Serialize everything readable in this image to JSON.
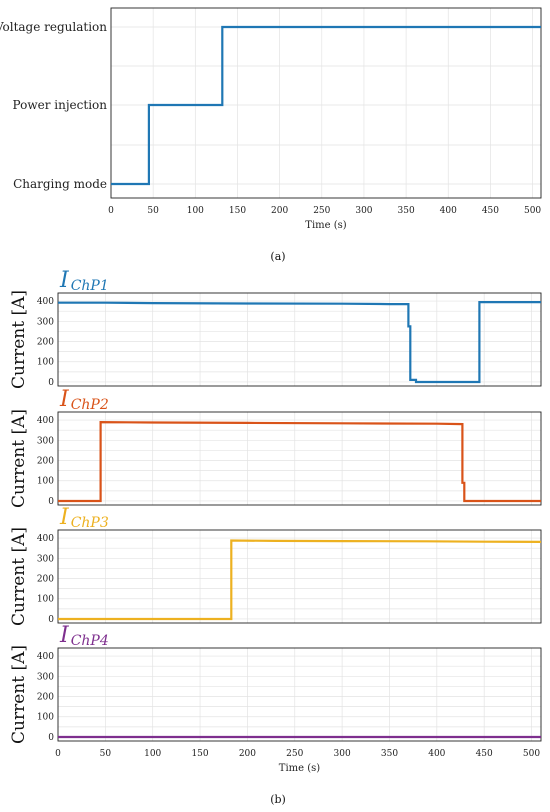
{
  "chart_data": [
    {
      "id": "a",
      "type": "line",
      "step": true,
      "caption": "(a)",
      "xlabel": "Time (s)",
      "xlim": [
        0,
        510
      ],
      "xticks": [
        0,
        50,
        100,
        150,
        200,
        250,
        300,
        350,
        400,
        450,
        500
      ],
      "ycategories": [
        "Charging mode",
        "Power injection",
        "Voltage regulation"
      ],
      "grid": true,
      "series": [
        {
          "color": "#1f77b4",
          "x": [
            0,
            45,
            45,
            132,
            132,
            510
          ],
          "y": [
            0,
            0,
            1,
            1,
            2,
            2
          ]
        }
      ]
    },
    {
      "id": "b",
      "type": "line",
      "caption": "(b)",
      "xlabel": "Time (s)",
      "xlim": [
        0,
        510
      ],
      "xticks": [
        0,
        50,
        100,
        150,
        200,
        250,
        300,
        350,
        400,
        450,
        500
      ],
      "grid": true,
      "panels": [
        {
          "title_main": "I",
          "title_sub": "ChP1",
          "ylabel": "Current [A]",
          "ylim": [
            -20,
            440
          ],
          "yticks": [
            0,
            100,
            200,
            300,
            400
          ],
          "color": "#1f77b4",
          "x": [
            0,
            50,
            100,
            200,
            300,
            350,
            370,
            370,
            372,
            372,
            378,
            378,
            445,
            445,
            510
          ],
          "y": [
            392,
            392,
            390,
            388,
            387,
            385,
            385,
            275,
            275,
            10,
            10,
            0,
            0,
            395,
            395
          ]
        },
        {
          "title_main": "I",
          "title_sub": "ChP2",
          "ylabel": "Current [A]",
          "ylim": [
            -20,
            440
          ],
          "yticks": [
            0,
            100,
            200,
            300,
            400
          ],
          "color": "#d95319",
          "x": [
            0,
            45,
            45,
            100,
            200,
            300,
            400,
            427,
            427,
            429,
            429,
            510
          ],
          "y": [
            0,
            0,
            390,
            388,
            386,
            384,
            382,
            380,
            90,
            90,
            0,
            0
          ]
        },
        {
          "title_main": "I",
          "title_sub": "ChP3",
          "ylabel": "Current [A]",
          "ylim": [
            -20,
            440
          ],
          "yticks": [
            0,
            100,
            200,
            300,
            400
          ],
          "color": "#edb120",
          "x": [
            0,
            183,
            183,
            230,
            300,
            390,
            450,
            510
          ],
          "y": [
            0,
            0,
            388,
            386,
            385,
            384,
            382,
            381
          ]
        },
        {
          "title_main": "I",
          "title_sub": "ChP4",
          "ylabel": "Current [A]",
          "ylim": [
            -20,
            440
          ],
          "yticks": [
            0,
            100,
            200,
            300,
            400
          ],
          "color": "#7e2f8e",
          "x": [
            0,
            510
          ],
          "y": [
            0,
            0
          ]
        }
      ]
    }
  ]
}
